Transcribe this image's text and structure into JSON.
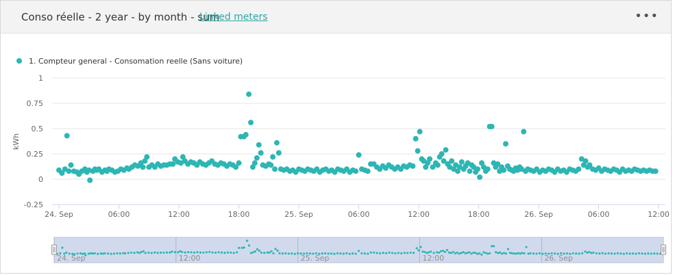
{
  "panel": {
    "title": "Conso réelle - 2 year - by month - sum",
    "link": "Linked meters",
    "menu_icon": "ellipsis-icon"
  },
  "colors": {
    "series": "#2db6b3",
    "grid": "#e6e6e6",
    "navigator_fill": "#ccd6eb"
  },
  "chart_data": {
    "type": "scatter",
    "legend": [
      "1. Compteur general - Consomation reelle (Sans voiture)"
    ],
    "legend_position": "top-left",
    "ylabel": "kWh",
    "xlabel": "",
    "ylim": [
      -0.25,
      1
    ],
    "y_ticks": [
      "1",
      "0.75",
      "0.5",
      "0.25",
      "0",
      "-0.25"
    ],
    "x_ticks": [
      "24. Sep",
      "06:00",
      "12:00",
      "18:00",
      "25. Sep",
      "06:00",
      "12:00",
      "18:00",
      "26. Sep",
      "06:00",
      "12:00"
    ],
    "x_range_hours": [
      0,
      60
    ],
    "navigator_ticks": [
      "24. Sep",
      "12:00",
      "25. Sep",
      "12:00",
      "26. Sep"
    ],
    "grid": true,
    "series": [
      {
        "name": "1. Compteur general - Consomation reelle (Sans voiture)",
        "points": [
          [
            0.0,
            0.09
          ],
          [
            0.3,
            0.06
          ],
          [
            0.6,
            0.1
          ],
          [
            0.8,
            0.43
          ],
          [
            1.0,
            0.08
          ],
          [
            1.2,
            0.14
          ],
          [
            1.5,
            0.08
          ],
          [
            1.8,
            0.07
          ],
          [
            2.0,
            0.05
          ],
          [
            2.3,
            0.08
          ],
          [
            2.6,
            0.1
          ],
          [
            2.8,
            0.07
          ],
          [
            3.0,
            0.09
          ],
          [
            3.1,
            -0.01
          ],
          [
            3.4,
            0.08
          ],
          [
            3.6,
            0.1
          ],
          [
            3.8,
            0.09
          ],
          [
            4.0,
            0.1
          ],
          [
            4.3,
            0.07
          ],
          [
            4.6,
            0.09
          ],
          [
            4.8,
            0.08
          ],
          [
            5.0,
            0.1
          ],
          [
            5.3,
            0.09
          ],
          [
            5.6,
            0.07
          ],
          [
            5.9,
            0.08
          ],
          [
            6.2,
            0.1
          ],
          [
            6.5,
            0.09
          ],
          [
            6.8,
            0.11
          ],
          [
            7.0,
            0.1
          ],
          [
            7.3,
            0.12
          ],
          [
            7.6,
            0.14
          ],
          [
            7.9,
            0.13
          ],
          [
            8.2,
            0.16
          ],
          [
            8.4,
            0.12
          ],
          [
            8.6,
            0.18
          ],
          [
            8.8,
            0.22
          ],
          [
            9.0,
            0.12
          ],
          [
            9.3,
            0.14
          ],
          [
            9.6,
            0.12
          ],
          [
            9.9,
            0.15
          ],
          [
            10.2,
            0.13
          ],
          [
            10.5,
            0.14
          ],
          [
            10.8,
            0.14
          ],
          [
            11.1,
            0.15
          ],
          [
            11.4,
            0.15
          ],
          [
            11.6,
            0.2
          ],
          [
            11.9,
            0.17
          ],
          [
            12.2,
            0.16
          ],
          [
            12.4,
            0.22
          ],
          [
            12.6,
            0.18
          ],
          [
            12.9,
            0.15
          ],
          [
            13.2,
            0.17
          ],
          [
            13.5,
            0.16
          ],
          [
            13.8,
            0.14
          ],
          [
            14.1,
            0.17
          ],
          [
            14.4,
            0.15
          ],
          [
            14.7,
            0.14
          ],
          [
            15.0,
            0.16
          ],
          [
            15.3,
            0.18
          ],
          [
            15.6,
            0.15
          ],
          [
            15.9,
            0.14
          ],
          [
            16.2,
            0.16
          ],
          [
            16.5,
            0.15
          ],
          [
            16.8,
            0.13
          ],
          [
            17.1,
            0.15
          ],
          [
            17.4,
            0.14
          ],
          [
            17.7,
            0.12
          ],
          [
            18.0,
            0.16
          ],
          [
            18.2,
            0.42
          ],
          [
            18.5,
            0.42
          ],
          [
            18.7,
            0.44
          ],
          [
            19.0,
            0.84
          ],
          [
            19.2,
            0.56
          ],
          [
            19.4,
            0.12
          ],
          [
            19.6,
            0.16
          ],
          [
            19.8,
            0.21
          ],
          [
            20.0,
            0.34
          ],
          [
            20.2,
            0.26
          ],
          [
            20.4,
            0.14
          ],
          [
            20.7,
            0.13
          ],
          [
            21.0,
            0.15
          ],
          [
            21.2,
            0.14
          ],
          [
            21.4,
            0.22
          ],
          [
            21.6,
            0.1
          ],
          [
            21.8,
            0.36
          ],
          [
            22.0,
            0.26
          ],
          [
            22.2,
            0.1
          ],
          [
            22.5,
            0.09
          ],
          [
            22.8,
            0.1
          ],
          [
            23.1,
            0.08
          ],
          [
            23.4,
            0.09
          ],
          [
            23.7,
            0.07
          ],
          [
            24.0,
            0.1
          ],
          [
            24.3,
            0.09
          ],
          [
            24.6,
            0.08
          ],
          [
            24.9,
            0.1
          ],
          [
            25.2,
            0.09
          ],
          [
            25.5,
            0.08
          ],
          [
            25.8,
            0.1
          ],
          [
            26.1,
            0.07
          ],
          [
            26.4,
            0.09
          ],
          [
            26.7,
            0.1
          ],
          [
            27.0,
            0.08
          ],
          [
            27.3,
            0.09
          ],
          [
            27.6,
            0.07
          ],
          [
            27.9,
            0.1
          ],
          [
            28.2,
            0.09
          ],
          [
            28.5,
            0.08
          ],
          [
            28.8,
            0.1
          ],
          [
            29.1,
            0.07
          ],
          [
            29.4,
            0.09
          ],
          [
            29.7,
            0.08
          ],
          [
            30.0,
            0.24
          ],
          [
            30.3,
            0.1
          ],
          [
            30.6,
            0.09
          ],
          [
            30.9,
            0.08
          ],
          [
            31.2,
            0.15
          ],
          [
            31.5,
            0.15
          ],
          [
            31.8,
            0.12
          ],
          [
            32.1,
            0.1
          ],
          [
            32.4,
            0.13
          ],
          [
            32.7,
            0.11
          ],
          [
            33.0,
            0.14
          ],
          [
            33.3,
            0.12
          ],
          [
            33.6,
            0.1
          ],
          [
            33.9,
            0.12
          ],
          [
            34.2,
            0.1
          ],
          [
            34.5,
            0.13
          ],
          [
            34.8,
            0.12
          ],
          [
            35.1,
            0.14
          ],
          [
            35.4,
            0.13
          ],
          [
            35.7,
            0.4
          ],
          [
            35.9,
            0.28
          ],
          [
            36.1,
            0.47
          ],
          [
            36.3,
            0.2
          ],
          [
            36.5,
            0.18
          ],
          [
            36.7,
            0.12
          ],
          [
            36.9,
            0.16
          ],
          [
            37.1,
            0.2
          ],
          [
            37.4,
            0.12
          ],
          [
            37.7,
            0.16
          ],
          [
            37.9,
            0.14
          ],
          [
            38.1,
            0.22
          ],
          [
            38.3,
            0.25
          ],
          [
            38.5,
            0.18
          ],
          [
            38.7,
            0.29
          ],
          [
            38.9,
            0.15
          ],
          [
            39.1,
            0.12
          ],
          [
            39.3,
            0.18
          ],
          [
            39.5,
            0.1
          ],
          [
            39.7,
            0.14
          ],
          [
            39.9,
            0.08
          ],
          [
            40.1,
            0.12
          ],
          [
            40.3,
            0.17
          ],
          [
            40.5,
            0.1
          ],
          [
            40.7,
            0.13
          ],
          [
            40.9,
            0.16
          ],
          [
            41.1,
            0.08
          ],
          [
            41.3,
            0.14
          ],
          [
            41.5,
            0.12
          ],
          [
            41.7,
            0.07
          ],
          [
            41.9,
            0.1
          ],
          [
            42.1,
            0.02
          ],
          [
            42.3,
            0.16
          ],
          [
            42.5,
            0.12
          ],
          [
            42.7,
            0.08
          ],
          [
            42.9,
            0.1
          ],
          [
            43.1,
            0.52
          ],
          [
            43.3,
            0.52
          ],
          [
            43.5,
            0.16
          ],
          [
            43.7,
            0.12
          ],
          [
            43.9,
            0.15
          ],
          [
            44.1,
            0.08
          ],
          [
            44.3,
            0.12
          ],
          [
            44.5,
            0.09
          ],
          [
            44.7,
            0.35
          ],
          [
            44.9,
            0.13
          ],
          [
            45.1,
            0.1
          ],
          [
            45.3,
            0.09
          ],
          [
            45.5,
            0.08
          ],
          [
            45.7,
            0.11
          ],
          [
            45.9,
            0.09
          ],
          [
            46.1,
            0.12
          ],
          [
            46.3,
            0.1
          ],
          [
            46.5,
            0.47
          ],
          [
            46.7,
            0.08
          ],
          [
            46.9,
            0.1
          ],
          [
            47.2,
            0.09
          ],
          [
            47.5,
            0.08
          ],
          [
            47.8,
            0.1
          ],
          [
            48.1,
            0.07
          ],
          [
            48.4,
            0.09
          ],
          [
            48.7,
            0.08
          ],
          [
            49.0,
            0.1
          ],
          [
            49.3,
            0.09
          ],
          [
            49.6,
            0.07
          ],
          [
            49.9,
            0.1
          ],
          [
            50.2,
            0.08
          ],
          [
            50.5,
            0.09
          ],
          [
            50.8,
            0.07
          ],
          [
            51.1,
            0.1
          ],
          [
            51.4,
            0.09
          ],
          [
            51.7,
            0.08
          ],
          [
            52.0,
            0.1
          ],
          [
            52.3,
            0.2
          ],
          [
            52.5,
            0.14
          ],
          [
            52.7,
            0.18
          ],
          [
            52.9,
            0.12
          ],
          [
            53.1,
            0.14
          ],
          [
            53.4,
            0.1
          ],
          [
            53.7,
            0.09
          ],
          [
            54.0,
            0.11
          ],
          [
            54.3,
            0.08
          ],
          [
            54.6,
            0.1
          ],
          [
            54.9,
            0.09
          ],
          [
            55.2,
            0.08
          ],
          [
            55.5,
            0.1
          ],
          [
            55.8,
            0.09
          ],
          [
            56.1,
            0.07
          ],
          [
            56.4,
            0.1
          ],
          [
            56.7,
            0.08
          ],
          [
            57.0,
            0.09
          ],
          [
            57.3,
            0.08
          ],
          [
            57.6,
            0.1
          ],
          [
            57.9,
            0.09
          ],
          [
            58.2,
            0.08
          ],
          [
            58.5,
            0.09
          ],
          [
            58.8,
            0.08
          ],
          [
            59.1,
            0.09
          ],
          [
            59.4,
            0.08
          ],
          [
            59.7,
            0.08
          ]
        ]
      }
    ]
  }
}
